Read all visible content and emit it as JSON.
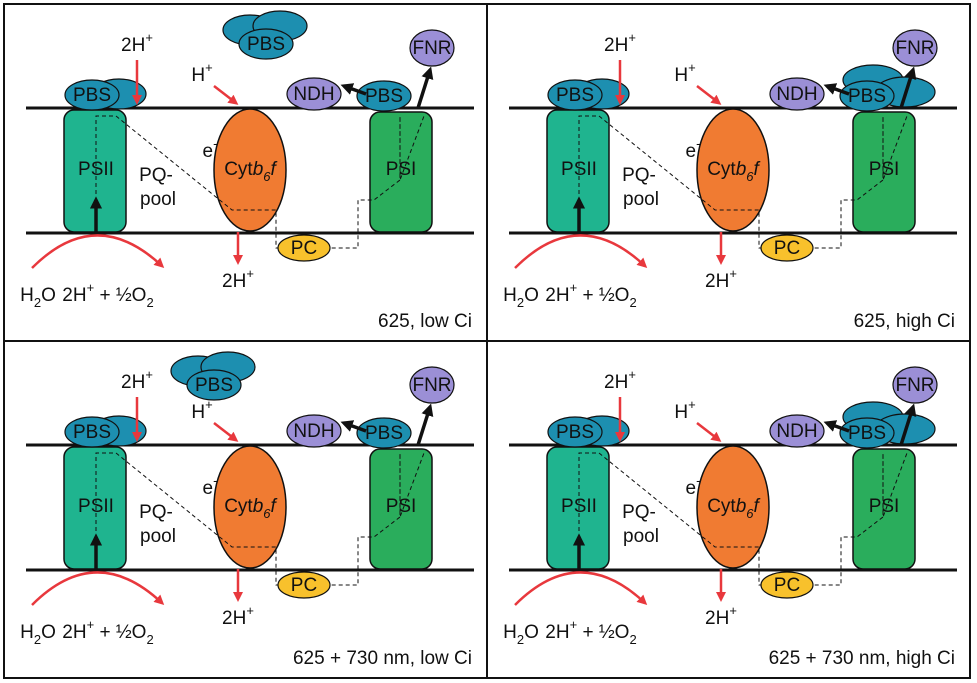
{
  "panels": [
    {
      "caption": "625, low Ci",
      "floating_pbs": "PBS",
      "pbs_psii": "PBS",
      "pbs_psi": "PBS",
      "ndh": "NDH",
      "fnr": "FNR",
      "psii": "PSII",
      "psi": "PSI",
      "proton_psii": [
        "2H",
        "+"
      ],
      "proton_cyt": [
        "H",
        "+"
      ],
      "electron": [
        "e",
        "-"
      ],
      "pq": [
        "PQ-",
        "pool"
      ],
      "cyt": [
        "Cyt",
        "b",
        "6",
        "f"
      ],
      "pc": "PC",
      "lumen_proton": [
        "2H",
        "+"
      ],
      "water": [
        "H",
        "2",
        "O"
      ],
      "oxygen": [
        "2H",
        "+",
        " + ½O",
        "2"
      ]
    },
    {
      "caption": "625, high Ci",
      "pbs_psii": "PBS",
      "pbs_psi": "PBS",
      "ndh": "NDH",
      "fnr": "FNR",
      "psii": "PSII",
      "psi": "PSI",
      "proton_psii": [
        "2H",
        "+"
      ],
      "proton_cyt": [
        "H",
        "+"
      ],
      "electron": [
        "e",
        "-"
      ],
      "pq": [
        "PQ-",
        "pool"
      ],
      "cyt": [
        "Cyt",
        "b",
        "6",
        "f"
      ],
      "pc": "PC",
      "lumen_proton": [
        "2H",
        "+"
      ],
      "water": [
        "H",
        "2",
        "O"
      ],
      "oxygen": [
        "2H",
        "+",
        " + ½O",
        "2"
      ]
    },
    {
      "caption": "625 + 730 nm, low Ci",
      "floating_pbs": "PBS",
      "pbs_psii": "PBS",
      "pbs_psi": "PBS",
      "ndh": "NDH",
      "fnr": "FNR",
      "psii": "PSII",
      "psi": "PSI",
      "proton_psii": [
        "2H",
        "+"
      ],
      "proton_cyt": [
        "H",
        "+"
      ],
      "electron": [
        "e",
        "-"
      ],
      "pq": [
        "PQ-",
        "pool"
      ],
      "cyt": [
        "Cyt",
        "b",
        "6",
        "f"
      ],
      "pc": "PC",
      "lumen_proton": [
        "2H",
        "+"
      ],
      "water": [
        "H",
        "2",
        "O"
      ],
      "oxygen": [
        "2H",
        "+",
        " + ½O",
        "2"
      ]
    },
    {
      "caption": "625 + 730 nm, high Ci",
      "pbs_psii": "PBS",
      "pbs_psi": "PBS",
      "ndh": "NDH",
      "fnr": "FNR",
      "psii": "PSII",
      "psi": "PSI",
      "proton_psii": [
        "2H",
        "+"
      ],
      "proton_cyt": [
        "H",
        "+"
      ],
      "electron": [
        "e",
        "-"
      ],
      "pq": [
        "PQ-",
        "pool"
      ],
      "cyt": [
        "Cyt",
        "b",
        "6",
        "f"
      ],
      "pc": "PC",
      "lumen_proton": [
        "2H",
        "+"
      ],
      "water": [
        "H",
        "2",
        "O"
      ],
      "oxygen": [
        "2H",
        "+",
        " + ½O",
        "2"
      ]
    }
  ]
}
